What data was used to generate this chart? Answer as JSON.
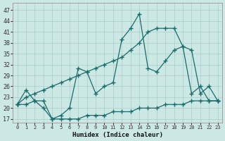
{
  "xlabel": "Humidex (Indice chaleur)",
  "background_color": "#cce8e4",
  "grid_color": "#aaccc8",
  "line_color": "#1a6b6b",
  "xlim": [
    -0.5,
    23.5
  ],
  "ylim": [
    16,
    49
  ],
  "xticks": [
    0,
    1,
    2,
    3,
    4,
    5,
    6,
    7,
    8,
    9,
    10,
    11,
    12,
    13,
    14,
    15,
    16,
    17,
    18,
    19,
    20,
    21,
    22,
    23
  ],
  "yticks": [
    17,
    20,
    23,
    26,
    29,
    32,
    35,
    38,
    41,
    44,
    47
  ],
  "series1_x": [
    0,
    1,
    2,
    3,
    4,
    5,
    6,
    7,
    8,
    9,
    10,
    11,
    12,
    13,
    14,
    15,
    16,
    17,
    18,
    19,
    20,
    21,
    22,
    23
  ],
  "series1_y": [
    21,
    25,
    22,
    20,
    17,
    18,
    20,
    31,
    30,
    24,
    26,
    27,
    39,
    42,
    46,
    31,
    30,
    33,
    36,
    37,
    24,
    26,
    22,
    22
  ],
  "series2_x": [
    0,
    1,
    2,
    3,
    4,
    5,
    6,
    7,
    8,
    9,
    10,
    11,
    12,
    13,
    14,
    15,
    16,
    17,
    18,
    19,
    20,
    21,
    22,
    23
  ],
  "series2_y": [
    21,
    23,
    24,
    25,
    26,
    27,
    28,
    29,
    30,
    31,
    32,
    33,
    34,
    36,
    38,
    41,
    42,
    42,
    42,
    37,
    36,
    24,
    26,
    22
  ],
  "series3_x": [
    0,
    1,
    2,
    3,
    4,
    5,
    6,
    7,
    8,
    9,
    10,
    11,
    12,
    13,
    14,
    15,
    16,
    17,
    18,
    19,
    20,
    21,
    22,
    23
  ],
  "series3_y": [
    21,
    21,
    22,
    22,
    17,
    17,
    17,
    17,
    18,
    18,
    18,
    19,
    19,
    19,
    20,
    20,
    20,
    21,
    21,
    21,
    22,
    22,
    22,
    22
  ]
}
